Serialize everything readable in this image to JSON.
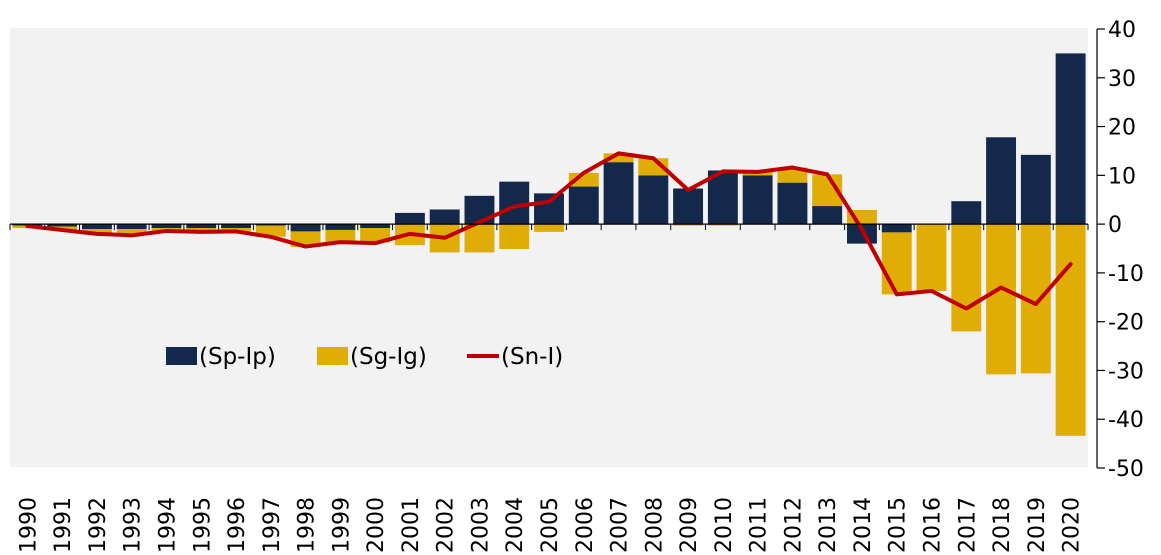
{
  "chart_data": {
    "type": "bar",
    "stacked": true,
    "categories": [
      "1990",
      "1991",
      "1992",
      "1993",
      "1994",
      "1995",
      "1996",
      "1997",
      "1998",
      "1999",
      "2000",
      "2001",
      "2002",
      "2003",
      "2004",
      "2005",
      "2006",
      "2007",
      "2008",
      "2009",
      "2010",
      "2011",
      "2012",
      "2013",
      "2014",
      "2015",
      "2016",
      "2017",
      "2018",
      "2019",
      "2020"
    ],
    "series": [
      {
        "name": "(Sp-Ip)",
        "type": "bar",
        "color": "#13284b",
        "values": [
          -0.3,
          -0.5,
          -1.0,
          -1.0,
          -0.8,
          -0.8,
          -0.8,
          -0.3,
          -1.5,
          -1.2,
          -0.8,
          2.3,
          3.0,
          5.8,
          8.7,
          6.3,
          7.7,
          12.7,
          10.0,
          7.3,
          11.0,
          10.0,
          8.5,
          3.7,
          -4.0,
          -1.7,
          0,
          4.7,
          17.8,
          14.2,
          35.0
        ]
      },
      {
        "name": "(Sg-Ig)",
        "type": "bar",
        "color": "#e0ad06",
        "values": [
          -0.5,
          -0.7,
          -1.0,
          -1.3,
          -0.6,
          -0.8,
          -0.7,
          -2.3,
          -3.2,
          -2.5,
          -3.0,
          -4.3,
          -5.8,
          -5.8,
          -5.1,
          -1.6,
          2.8,
          1.8,
          3.5,
          -0.3,
          -0.3,
          0.7,
          3.1,
          6.5,
          2.9,
          -12.7,
          -13.7,
          -22.0,
          -30.8,
          -30.6,
          -43.4
        ]
      },
      {
        "name": "(Sn-I)",
        "type": "line",
        "color": "#c00000",
        "values": [
          -0.4,
          -1.2,
          -2.0,
          -2.3,
          -1.4,
          -1.6,
          -1.5,
          -2.6,
          -4.6,
          -3.7,
          -3.9,
          -2.0,
          -2.8,
          0.4,
          3.6,
          4.6,
          10.5,
          14.5,
          13.5,
          7.0,
          10.8,
          10.7,
          11.6,
          10.2,
          -1.1,
          -14.4,
          -13.7,
          -17.3,
          -13.0,
          -16.4,
          -8.2
        ]
      }
    ],
    "yticks": [
      40,
      30,
      20,
      10,
      0,
      -10,
      -20,
      -30,
      -40,
      -50
    ],
    "ylim": [
      -50,
      40
    ],
    "y_axis_side": "right",
    "legend_position": "center-left",
    "grid": false,
    "plot_background": "#f2f2f2"
  }
}
